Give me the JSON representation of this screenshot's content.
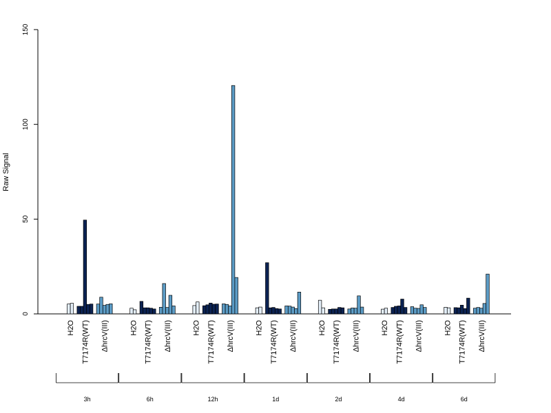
{
  "chart_data": {
    "type": "bar",
    "title": "",
    "xlabel": "",
    "ylabel": "Raw Signal",
    "ylim": [
      0,
      150
    ],
    "yticks": [
      0,
      50,
      100,
      150
    ],
    "treatments": [
      "H2O",
      "T7174R(WT)",
      "ΔhrcV(III)"
    ],
    "timepoints": [
      "3h",
      "6h",
      "12h",
      "1d",
      "2d",
      "4d",
      "6d"
    ],
    "colors": {
      "H2O": "#e3eef8",
      "T7174R(WT)": "#0c2353",
      "ΔhrcV(III)": "#5c9cc6"
    },
    "groups": [
      {
        "time": "3h",
        "replicates": {
          "H2O": [
            5.2,
            5.6
          ],
          "T7174R(WT)": [
            4.0,
            4.0,
            49.5,
            5.0,
            5.2
          ],
          "ΔhrcV(III)": [
            5.2,
            8.8,
            4.5,
            5.0,
            5.3
          ]
        }
      },
      {
        "time": "6h",
        "replicates": {
          "H2O": [
            3.0,
            2.2
          ],
          "T7174R(WT)": [
            6.6,
            3.2,
            3.2,
            3.0,
            2.6
          ],
          "ΔhrcV(III)": [
            3.5,
            16.0,
            3.4,
            9.8,
            4.2
          ]
        }
      },
      {
        "time": "12h",
        "replicates": {
          "H2O": [
            4.4,
            6.3
          ],
          "T7174R(WT)": [
            4.3,
            4.8,
            5.7,
            5.1,
            5.2
          ],
          "ΔhrcV(III)": [
            5.3,
            5.0,
            4.2,
            120.5,
            19.2
          ]
        }
      },
      {
        "time": "1d",
        "replicates": {
          "H2O": [
            3.2,
            3.6
          ],
          "T7174R(WT)": [
            27.0,
            3.2,
            3.4,
            2.8,
            2.6
          ],
          "ΔhrcV(III)": [
            4.2,
            4.1,
            3.6,
            2.8,
            11.5
          ]
        }
      },
      {
        "time": "2d",
        "replicates": {
          "H2O": [
            7.2,
            3.2
          ],
          "T7174R(WT)": [
            2.4,
            2.6,
            2.6,
            3.4,
            3.2
          ],
          "ΔhrcV(III)": [
            2.6,
            3.1,
            3.0,
            9.5,
            3.6
          ]
        }
      },
      {
        "time": "4d",
        "replicates": {
          "H2O": [
            2.5,
            3.0
          ],
          "T7174R(WT)": [
            3.4,
            4.0,
            4.2,
            7.8,
            3.4
          ],
          "ΔhrcV(III)": [
            3.8,
            3.0,
            2.9,
            4.8,
            3.4
          ]
        }
      },
      {
        "time": "6d",
        "replicates": {
          "H2O": [
            3.5,
            3.2
          ],
          "T7174R(WT)": [
            3.3,
            3.2,
            4.6,
            2.8,
            8.3
          ],
          "ΔhrcV(III)": [
            3.0,
            3.4,
            3.0,
            5.5,
            21.0
          ]
        }
      }
    ]
  }
}
